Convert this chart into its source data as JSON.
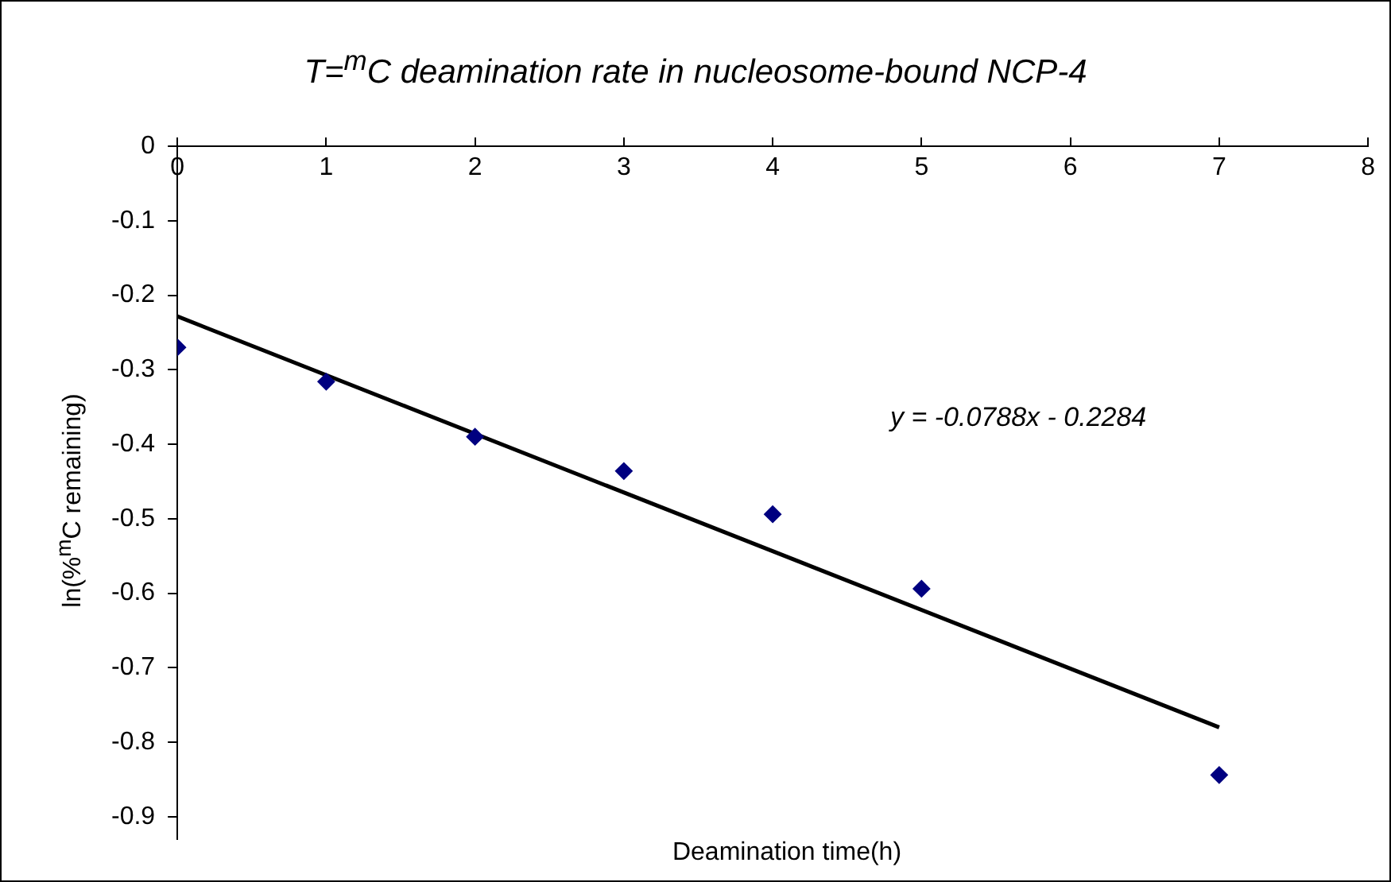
{
  "chart_data": {
    "type": "scatter",
    "title": "T=$^{m}$C deamination rate in nucleosome-bound NCP-4",
    "xlabel": "Deamination time(h)",
    "ylabel": "ln(%$^{m}$C remaining)",
    "x": [
      0,
      1,
      2,
      3,
      4,
      5,
      7
    ],
    "series": [
      {
        "color": "#000080",
        "values": [
          -0.27,
          -0.316,
          -0.39,
          -0.436,
          -0.494,
          -0.594,
          -0.844
        ]
      },
      {
        "type": "line",
        "marker": "none",
        "color": "#000000",
        "x": [
          0,
          7
        ],
        "values": [
          -0.2284,
          -0.78
        ]
      }
    ],
    "annotations": [
      "y = -0.0788x - 0.2284"
    ],
    "xlim": [
      0,
      8
    ],
    "xticks": [
      0,
      1,
      2,
      3,
      4,
      5,
      6,
      7,
      8
    ],
    "ylim": [
      -0.93,
      0
    ],
    "yticks": [
      0,
      -0.1,
      -0.2,
      -0.3,
      -0.4,
      -0.5,
      -0.6,
      -0.7,
      -0.8,
      -0.9
    ],
    "grid": false,
    "legend": false,
    "marker": "diamond"
  }
}
